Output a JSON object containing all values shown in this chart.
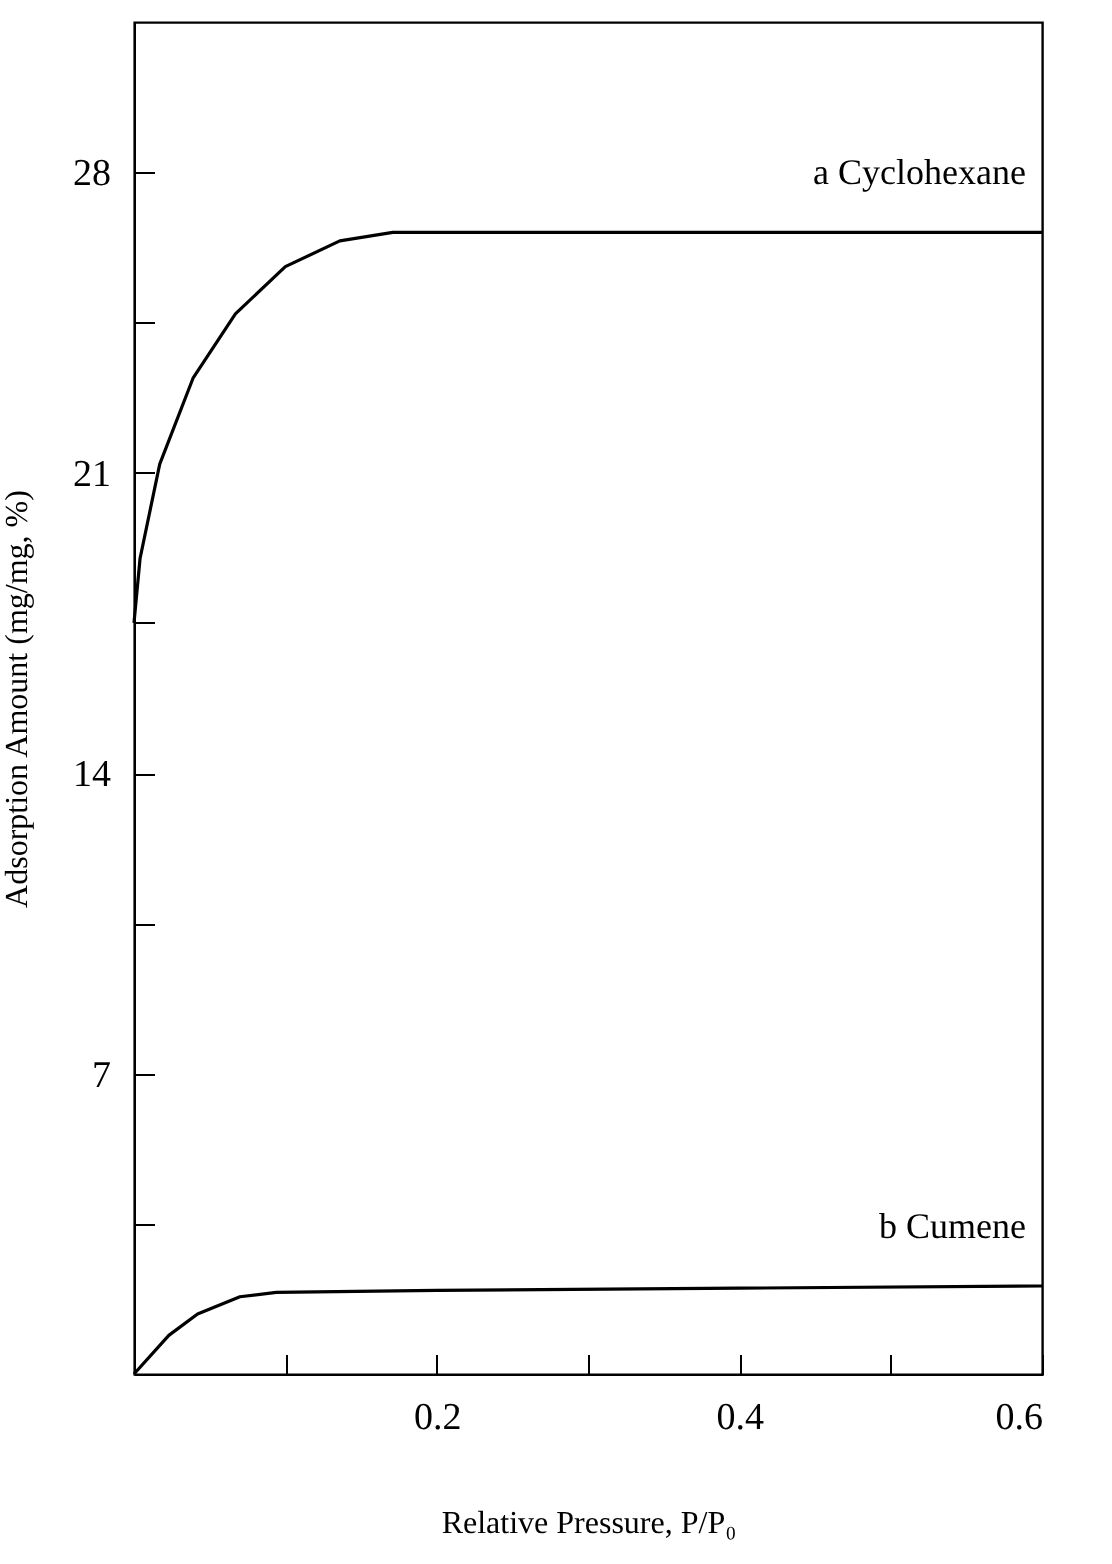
{
  "chart_data": {
    "type": "line",
    "xlabel": "Relative Pressure, P/P₀",
    "ylabel": "Adsorption Amount (mg/mg, %)",
    "xlim": [
      0,
      0.6
    ],
    "ylim": [
      0,
      31.5
    ],
    "xticks": [
      {
        "value": 0.1,
        "label": null
      },
      0.2,
      {
        "value": 0.3,
        "label": null
      },
      0.4,
      {
        "value": 0.5,
        "label": null
      },
      0.6
    ],
    "yticks": [
      {
        "value": 3.5,
        "label": null
      },
      7,
      {
        "value": 10.5,
        "label": null
      },
      14,
      {
        "value": 17.5,
        "label": null
      },
      21,
      {
        "value": 24.5,
        "label": null
      },
      28
    ],
    "grid": false,
    "legend": false,
    "marker": "none",
    "line_style": "solid",
    "series": [
      {
        "name": "a Cyclohexane",
        "color": "#000000",
        "x": [
          0,
          0.004,
          0.017,
          0.039,
          0.067,
          0.1,
          0.136,
          0.171,
          0.3,
          0.45,
          0.6
        ],
        "values": [
          17.5,
          19.0,
          21.2,
          23.2,
          24.7,
          25.8,
          26.4,
          26.6,
          26.6,
          26.6,
          26.6
        ]
      },
      {
        "name": "b Cumene",
        "color": "#000000",
        "x": [
          0,
          0.023,
          0.042,
          0.07,
          0.094,
          0.2,
          0.4,
          0.6
        ],
        "values": [
          0,
          0.9,
          1.4,
          1.8,
          1.9,
          1.95,
          2.0,
          2.05
        ]
      }
    ]
  }
}
